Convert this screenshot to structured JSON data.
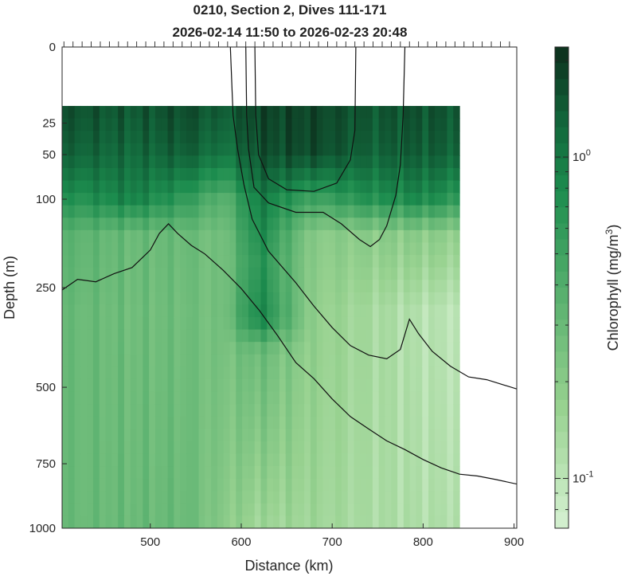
{
  "chart_data": {
    "type": "heatmap",
    "title": "0210, Section 2, Dives 111-171",
    "subtitle": "2026-02-14 11:50 to 2026-02-23 20:48",
    "xlabel": "Distance (km)",
    "ylabel": "Depth (m)",
    "xlim": [
      403,
      903
    ],
    "xticks": [
      {
        "value": 500,
        "label": "500"
      },
      {
        "value": 600,
        "label": "600"
      },
      {
        "value": 700,
        "label": "700"
      },
      {
        "value": 800,
        "label": "800"
      },
      {
        "value": 900,
        "label": "900"
      }
    ],
    "y_scale": "sqrt",
    "ylim": [
      1000,
      0
    ],
    "yticks": [
      {
        "value": 0,
        "label": "0"
      },
      {
        "value": 25,
        "label": "25"
      },
      {
        "value": 50,
        "label": "50"
      },
      {
        "value": 100,
        "label": "100"
      },
      {
        "value": 250,
        "label": "250"
      },
      {
        "value": 500,
        "label": "500"
      },
      {
        "value": 750,
        "label": "750"
      },
      {
        "value": 1000,
        "label": "1000"
      }
    ],
    "colorbar": {
      "label": "Chlorophyll (mg/m^3)",
      "scale": "log",
      "range": [
        0.07,
        2.2
      ],
      "ticks": [
        {
          "value": 1.0,
          "label": "10^0"
        },
        {
          "value": 0.1,
          "label": "10^-1"
        }
      ],
      "colormap": "greens"
    },
    "data_extent": {
      "distance_km": [
        403,
        840
      ],
      "depth_m": [
        15,
        1000
      ]
    },
    "chlorophyll_profiles": [
      {
        "distance_km": 420,
        "values": [
          [
            15,
            1.6
          ],
          [
            50,
            1.3
          ],
          [
            100,
            0.7
          ],
          [
            150,
            0.35
          ],
          [
            300,
            0.3
          ],
          [
            1000,
            0.3
          ]
        ]
      },
      {
        "distance_km": 480,
        "values": [
          [
            15,
            1.5
          ],
          [
            50,
            1.2
          ],
          [
            100,
            0.9
          ],
          [
            150,
            0.3
          ],
          [
            300,
            0.28
          ],
          [
            1000,
            0.3
          ]
        ]
      },
      {
        "distance_km": 540,
        "values": [
          [
            15,
            1.7
          ],
          [
            50,
            1.4
          ],
          [
            100,
            0.6
          ],
          [
            150,
            0.3
          ],
          [
            300,
            0.28
          ],
          [
            1000,
            0.3
          ]
        ]
      },
      {
        "distance_km": 580,
        "values": [
          [
            15,
            1.4
          ],
          [
            50,
            1.0
          ],
          [
            100,
            0.35
          ],
          [
            150,
            0.25
          ],
          [
            300,
            0.25
          ],
          [
            1000,
            0.2
          ]
        ]
      },
      {
        "distance_km": 620,
        "values": [
          [
            15,
            1.8
          ],
          [
            50,
            1.6
          ],
          [
            100,
            1.0
          ],
          [
            200,
            0.7
          ],
          [
            320,
            0.9
          ],
          [
            400,
            0.3
          ],
          [
            1000,
            0.15
          ]
        ]
      },
      {
        "distance_km": 680,
        "values": [
          [
            15,
            1.8
          ],
          [
            50,
            1.7
          ],
          [
            100,
            0.5
          ],
          [
            150,
            0.2
          ],
          [
            300,
            0.18
          ],
          [
            1000,
            0.15
          ]
        ]
      },
      {
        "distance_km": 740,
        "values": [
          [
            15,
            1.5
          ],
          [
            50,
            1.3
          ],
          [
            100,
            0.7
          ],
          [
            150,
            0.2
          ],
          [
            300,
            0.14
          ],
          [
            1000,
            0.13
          ]
        ]
      },
      {
        "distance_km": 800,
        "values": [
          [
            15,
            1.6
          ],
          [
            50,
            1.4
          ],
          [
            100,
            0.8
          ],
          [
            150,
            0.2
          ],
          [
            300,
            0.11
          ],
          [
            1000,
            0.12
          ]
        ]
      },
      {
        "distance_km": 840,
        "values": [
          [
            15,
            1.5
          ],
          [
            50,
            1.3
          ],
          [
            100,
            0.6
          ],
          [
            150,
            0.18
          ],
          [
            300,
            0.1
          ],
          [
            1000,
            0.12
          ]
        ]
      }
    ],
    "contours": [
      {
        "points": [
          [
            403,
            255
          ],
          [
            420,
            233
          ],
          [
            440,
            238
          ],
          [
            460,
            222
          ],
          [
            480,
            210
          ],
          [
            500,
            178
          ],
          [
            510,
            150
          ],
          [
            520,
            135
          ],
          [
            530,
            150
          ],
          [
            545,
            170
          ],
          [
            560,
            185
          ],
          [
            580,
            215
          ],
          [
            600,
            252
          ],
          [
            620,
            300
          ],
          [
            640,
            360
          ],
          [
            660,
            430
          ],
          [
            680,
            475
          ],
          [
            700,
            535
          ],
          [
            720,
            590
          ],
          [
            740,
            630
          ],
          [
            760,
            670
          ],
          [
            780,
            700
          ],
          [
            800,
            735
          ],
          [
            820,
            765
          ],
          [
            840,
            788
          ],
          [
            860,
            795
          ],
          [
            880,
            808
          ],
          [
            903,
            825
          ]
        ]
      },
      {
        "points": [
          [
            588,
            0
          ],
          [
            591,
            20
          ],
          [
            596,
            45
          ],
          [
            603,
            82
          ],
          [
            612,
            128
          ],
          [
            630,
            180
          ],
          [
            660,
            240
          ],
          [
            680,
            290
          ],
          [
            700,
            340
          ],
          [
            720,
            385
          ],
          [
            740,
            410
          ],
          [
            760,
            420
          ],
          [
            775,
            395
          ],
          [
            785,
            320
          ],
          [
            795,
            355
          ],
          [
            810,
            400
          ],
          [
            830,
            440
          ],
          [
            850,
            470
          ],
          [
            870,
            478
          ],
          [
            903,
            505
          ]
        ]
      },
      {
        "points": [
          [
            605,
            0
          ],
          [
            606,
            20
          ],
          [
            608,
            45
          ],
          [
            614,
            85
          ],
          [
            630,
            105
          ],
          [
            660,
            118
          ],
          [
            690,
            118
          ],
          [
            710,
            135
          ],
          [
            730,
            160
          ],
          [
            742,
            172
          ],
          [
            752,
            160
          ],
          [
            760,
            138
          ],
          [
            770,
            95
          ],
          [
            775,
            60
          ],
          [
            778,
            20
          ],
          [
            780,
            0
          ]
        ]
      },
      {
        "points": [
          [
            615,
            0
          ],
          [
            616,
            20
          ],
          [
            619,
            50
          ],
          [
            630,
            75
          ],
          [
            650,
            88
          ],
          [
            680,
            90
          ],
          [
            705,
            80
          ],
          [
            720,
            55
          ],
          [
            725,
            30
          ],
          [
            726,
            0
          ]
        ]
      }
    ]
  }
}
